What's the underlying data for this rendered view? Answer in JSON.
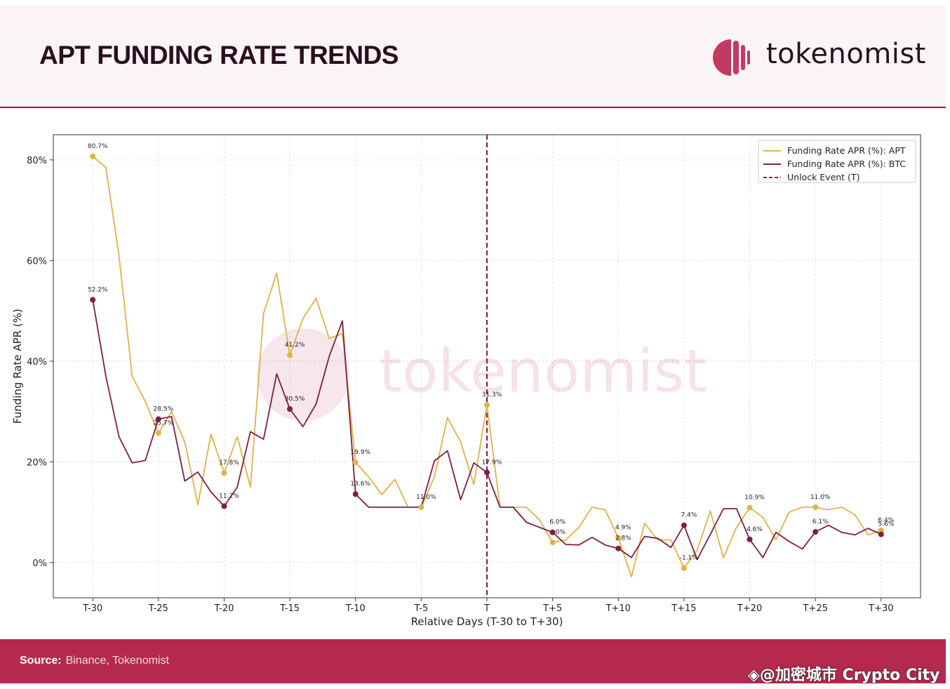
{
  "header": {
    "title": "APT FUNDING RATE TRENDS",
    "logo_text": "tokenomist"
  },
  "footer": {
    "source_label": "Source:",
    "source_value": "Binance, Tokenomist"
  },
  "overlay_credit": "◈@加密城市 Crypto City",
  "colors": {
    "apt": "#e0b24a",
    "btc": "#7e1f43",
    "unlock": "#8e1f3d",
    "brand": "#b5294e",
    "accent": "#c23a61"
  },
  "chart_data": {
    "type": "line",
    "xlabel": "Relative Days (T-30 to T+30)",
    "ylabel": "Funding Rate APR (%)",
    "xlim": [
      -33,
      33
    ],
    "ylim": [
      -7,
      85
    ],
    "x_ticks": [
      -30,
      -25,
      -20,
      -15,
      -10,
      -5,
      0,
      5,
      10,
      15,
      20,
      25,
      30
    ],
    "x_tick_labels": [
      "T-30",
      "T-25",
      "T-20",
      "T-15",
      "T-10",
      "T-5",
      "T",
      "T+5",
      "T+10",
      "T+15",
      "T+20",
      "T+25",
      "T+30"
    ],
    "y_ticks": [
      0,
      20,
      40,
      60,
      80
    ],
    "y_tick_labels": [
      "0%",
      "20%",
      "40%",
      "60%",
      "80%"
    ],
    "grid": true,
    "legend_position": "top-right",
    "watermark": "tokenomist",
    "x": [
      -30,
      -29,
      -28,
      -27,
      -26,
      -25,
      -24,
      -23,
      -22,
      -21,
      -20,
      -19,
      -18,
      -17,
      -16,
      -15,
      -14,
      -13,
      -12,
      -11,
      -10,
      -9,
      -8,
      -7,
      -6,
      -5,
      -4,
      -3,
      -2,
      -1,
      0,
      1,
      2,
      3,
      4,
      5,
      6,
      7,
      8,
      9,
      10,
      11,
      12,
      13,
      14,
      15,
      16,
      17,
      18,
      19,
      20,
      21,
      22,
      23,
      24,
      25,
      26,
      27,
      28,
      29,
      30
    ],
    "series": [
      {
        "name": "Funding Rate APR (%): APT",
        "values": [
          80.7,
          78.5,
          61,
          37,
          32,
          25.7,
          30,
          24,
          11.5,
          25.5,
          17.8,
          25,
          15,
          49.5,
          57.5,
          41.2,
          48.5,
          52.5,
          44.5,
          45.5,
          19.9,
          17,
          13.5,
          16.5,
          11,
          11.0,
          17,
          28.8,
          24,
          15.5,
          31.3,
          11,
          11,
          11,
          8.5,
          4.0,
          4.5,
          7,
          11,
          10.5,
          4.9,
          -2.8,
          7.8,
          4.5,
          4.5,
          -1.1,
          2.5,
          10.2,
          1,
          7,
          10.9,
          9,
          4.5,
          10,
          11,
          11.0,
          10.5,
          11,
          9.5,
          5.5,
          6.4
        ],
        "markers": [
          {
            "x": -30,
            "label": "80.7%"
          },
          {
            "x": -25,
            "label": "25.7%"
          },
          {
            "x": -20,
            "label": "17.8%"
          },
          {
            "x": -15,
            "label": "41.2%"
          },
          {
            "x": -10,
            "label": "19.9%"
          },
          {
            "x": -5,
            "label": "11.0%"
          },
          {
            "x": 0,
            "label": "31.3%"
          },
          {
            "x": 5,
            "label": "4.0%"
          },
          {
            "x": 10,
            "label": "4.9%"
          },
          {
            "x": 15,
            "label": "-1.1%"
          },
          {
            "x": 20,
            "label": "10.9%"
          },
          {
            "x": 25,
            "label": "11.0%"
          },
          {
            "x": 30,
            "label": "6.4%"
          }
        ]
      },
      {
        "name": "Funding Rate APR (%): BTC",
        "values": [
          52.2,
          37,
          25,
          19.8,
          20.3,
          28.5,
          29,
          16.2,
          18,
          14,
          11.2,
          15,
          26,
          24.5,
          37.5,
          30.5,
          27,
          31.5,
          41,
          48,
          13.6,
          11,
          11,
          11,
          11,
          11,
          20.2,
          22.2,
          12.5,
          19.8,
          17.9,
          11,
          11,
          8,
          7,
          6.0,
          3.6,
          3.5,
          5,
          3.5,
          2.8,
          1,
          5.2,
          4.8,
          3,
          7.4,
          0.6,
          5.6,
          10.7,
          10.7,
          4.6,
          1,
          6,
          4.2,
          2.7,
          6.1,
          7.4,
          6,
          5.5,
          6.8,
          5.6
        ],
        "markers": [
          {
            "x": -30,
            "label": "52.2%"
          },
          {
            "x": -25,
            "label": "28.5%"
          },
          {
            "x": -20,
            "label": "11.2%"
          },
          {
            "x": -15,
            "label": "30.5%"
          },
          {
            "x": -10,
            "label": "13.6%"
          },
          {
            "x": 0,
            "label": "17.9%"
          },
          {
            "x": 5,
            "label": "6.0%"
          },
          {
            "x": 10,
            "label": "2.8%"
          },
          {
            "x": 15,
            "label": "7.4%"
          },
          {
            "x": 20,
            "label": "4.6%"
          },
          {
            "x": 25,
            "label": "6.1%"
          },
          {
            "x": 30,
            "label": "5.6%"
          }
        ]
      }
    ],
    "reference_line": {
      "x": 0,
      "name": "Unlock Event (T)",
      "style": "dashed"
    }
  }
}
